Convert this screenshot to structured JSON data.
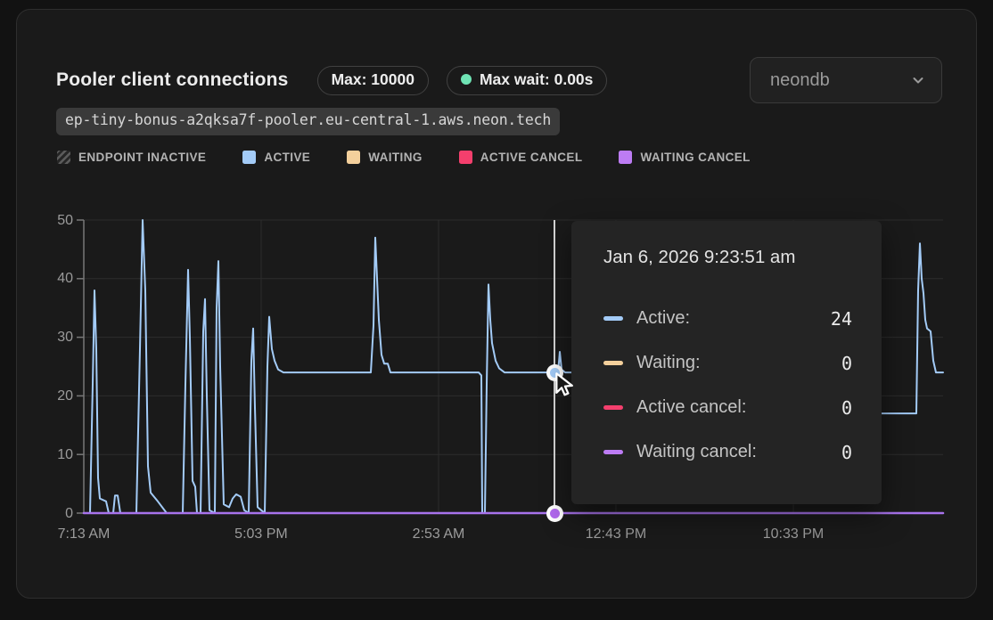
{
  "header": {
    "title": "Pooler client connections",
    "badges": [
      {
        "label": "Max: 10000"
      },
      {
        "label": "Max wait: 0.00s",
        "dot_color": "#6fe3b4"
      }
    ],
    "database_selector": {
      "value": "neondb"
    },
    "endpoint_host": "ep-tiny-bonus-a2qksa7f-pooler.eu-central-1.aws.neon.tech"
  },
  "legend": {
    "items": [
      {
        "label": "ENDPOINT INACTIVE",
        "swatch": "hatch"
      },
      {
        "label": "ACTIVE",
        "color": "#a3cbf7"
      },
      {
        "label": "WAITING",
        "color": "#f4d09c"
      },
      {
        "label": "ACTIVE CANCEL",
        "color": "#f43f6d"
      },
      {
        "label": "WAITING CANCEL",
        "color": "#bd7cf4"
      }
    ]
  },
  "tooltip": {
    "title": "Jan 6, 2026 9:23:51 am",
    "rows": [
      {
        "label": "Active:",
        "value": "24",
        "color": "#a3cbf7"
      },
      {
        "label": "Waiting:",
        "value": "0",
        "color": "#f4d09c"
      },
      {
        "label": "Active cancel:",
        "value": "0",
        "color": "#f43f6d"
      },
      {
        "label": "Waiting cancel:",
        "value": "0",
        "color": "#bd7cf4"
      }
    ]
  },
  "chart_data": {
    "type": "line",
    "title": "Pooler client connections",
    "ylim": [
      0,
      50
    ],
    "y_ticks": [
      0,
      10,
      20,
      30,
      40,
      50
    ],
    "x_tick_labels": [
      "7:13 AM",
      "5:03 PM",
      "2:53 AM",
      "12:43 PM",
      "10:33 PM"
    ],
    "x_tick_pos": [
      0,
      0.2064,
      0.4129,
      0.6193,
      0.8257
    ],
    "grid": true,
    "legend_position": "top",
    "colors": {
      "grid": "#2c2c2c",
      "axis": "#787878"
    },
    "series": [
      {
        "name": "Active",
        "color": "#a3cbf7",
        "width": 2,
        "points": [
          [
            0,
            0
          ],
          [
            7,
            0
          ],
          [
            10,
            22
          ],
          [
            12,
            38
          ],
          [
            14,
            28
          ],
          [
            16,
            6
          ],
          [
            18,
            2.5
          ],
          [
            25,
            2
          ],
          [
            28,
            0
          ],
          [
            33,
            0
          ],
          [
            35,
            3
          ],
          [
            38,
            3
          ],
          [
            41,
            0
          ],
          [
            59,
            0
          ],
          [
            63,
            28
          ],
          [
            66,
            50
          ],
          [
            69,
            38
          ],
          [
            72,
            8
          ],
          [
            75,
            3.5
          ],
          [
            83,
            2
          ],
          [
            93,
            0
          ],
          [
            111,
            0
          ],
          [
            114,
            22
          ],
          [
            117,
            41.5
          ],
          [
            119,
            30
          ],
          [
            122,
            5.5
          ],
          [
            125,
            4.5
          ],
          [
            127,
            0
          ],
          [
            131,
            0
          ],
          [
            134,
            31
          ],
          [
            136,
            36.5
          ],
          [
            138,
            20
          ],
          [
            141,
            0.5
          ],
          [
            147,
            0
          ],
          [
            149,
            35
          ],
          [
            151,
            43
          ],
          [
            153,
            25
          ],
          [
            157,
            1.5
          ],
          [
            163,
            1
          ],
          [
            167,
            2.5
          ],
          [
            171,
            3.2
          ],
          [
            176,
            2.8
          ],
          [
            180,
            0.5
          ],
          [
            185,
            0
          ],
          [
            188,
            26
          ],
          [
            190,
            31.5
          ],
          [
            192,
            18
          ],
          [
            195,
            1
          ],
          [
            199,
            0.5
          ],
          [
            203,
            0
          ],
          [
            206,
            25
          ],
          [
            208,
            33.5
          ],
          [
            211,
            28
          ],
          [
            214,
            26
          ],
          [
            218,
            24.5
          ],
          [
            224,
            24
          ],
          [
            322,
            24
          ],
          [
            325,
            32
          ],
          [
            327,
            47
          ],
          [
            329,
            40
          ],
          [
            331,
            33
          ],
          [
            334,
            27
          ],
          [
            337,
            25.5
          ],
          [
            341,
            25.5
          ],
          [
            344,
            24
          ],
          [
            443,
            24
          ],
          [
            446,
            23.5
          ],
          [
            447,
            0
          ],
          [
            450,
            0
          ],
          [
            452,
            22
          ],
          [
            454,
            39
          ],
          [
            456,
            33
          ],
          [
            458,
            29
          ],
          [
            462,
            26
          ],
          [
            466,
            24.7
          ],
          [
            472,
            24
          ],
          [
            525,
            24
          ],
          [
            529,
            24
          ],
          [
            532,
            24
          ],
          [
            534,
            27.5
          ],
          [
            536,
            24.5
          ],
          [
            540,
            24
          ],
          [
            560,
            24
          ],
          [
            700,
            24
          ],
          [
            706,
            17
          ],
          [
            890,
            17
          ],
          [
            934,
            17
          ],
          [
            936,
            38
          ],
          [
            938,
            46
          ],
          [
            940,
            40
          ],
          [
            942,
            37.5
          ],
          [
            944,
            33
          ],
          [
            946,
            31.5
          ],
          [
            950,
            31
          ],
          [
            953,
            26
          ],
          [
            956,
            24
          ],
          [
            964,
            24
          ]
        ]
      },
      {
        "name": "Waiting",
        "color": "#f4d09c",
        "width": 2,
        "points": [
          [
            0,
            0
          ],
          [
            964,
            0
          ]
        ]
      },
      {
        "name": "Active cancel",
        "color": "#f43f6d",
        "width": 2,
        "points": [
          [
            0,
            0
          ],
          [
            964,
            0
          ]
        ]
      },
      {
        "name": "Waiting cancel",
        "color": "#a873ec",
        "width": 2.5,
        "points": [
          [
            0,
            0
          ],
          [
            964,
            0
          ]
        ]
      }
    ],
    "hover": {
      "x": 528,
      "active_value": 24,
      "crosshair_color": "#d6d6d6",
      "point_color": "#a3cbf7",
      "baseline_point_color": "#b169ee"
    }
  }
}
